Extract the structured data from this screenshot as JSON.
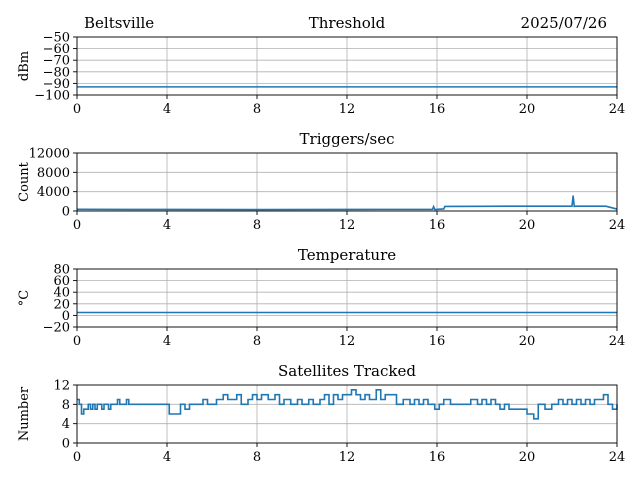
{
  "header": {
    "location": "Beltsville",
    "date": "2025/07/26"
  },
  "colors": {
    "line": "#1f77b4",
    "grid": "#b0b0b0",
    "axis": "#000000"
  },
  "chart_data": [
    {
      "type": "line",
      "title": "Threshold",
      "xlabel": "",
      "ylabel": "dBm",
      "xlim": [
        0,
        24
      ],
      "ylim": [
        -100,
        -50
      ],
      "xticks": [
        0,
        4,
        8,
        12,
        16,
        20,
        24
      ],
      "yticks": [
        -100,
        -90,
        -80,
        -70,
        -60,
        -50
      ],
      "ytick_labels": [
        "−100",
        "−90",
        "−80",
        "−70",
        "−60",
        "−50"
      ],
      "grid": true,
      "series": [
        {
          "x": [
            0,
            24
          ],
          "y": [
            -93,
            -93
          ]
        }
      ]
    },
    {
      "type": "line",
      "title": "Triggers/sec",
      "xlabel": "",
      "ylabel": "Count",
      "xlim": [
        0,
        24
      ],
      "ylim": [
        0,
        12000
      ],
      "xticks": [
        0,
        4,
        8,
        12,
        16,
        20,
        24
      ],
      "yticks": [
        0,
        4000,
        8000,
        12000
      ],
      "ytick_labels": [
        "0",
        "4000",
        "8000",
        "12000"
      ],
      "grid": true,
      "series": [
        {
          "x": [
            0,
            4,
            8,
            12,
            15.8,
            15.85,
            15.9,
            16.1,
            16.3,
            16.35,
            18,
            20,
            22,
            22.05,
            22.1,
            22.15,
            23.5,
            24
          ],
          "y": [
            350,
            320,
            300,
            330,
            350,
            900,
            300,
            380,
            420,
            950,
            980,
            1000,
            1000,
            3200,
            950,
            1000,
            1000,
            400
          ]
        }
      ]
    },
    {
      "type": "line",
      "title": "Temperature",
      "xlabel": "",
      "ylabel": "°C",
      "xlim": [
        0,
        24
      ],
      "ylim": [
        -20,
        80
      ],
      "xticks": [
        0,
        4,
        8,
        12,
        16,
        20,
        24
      ],
      "yticks": [
        -20,
        0,
        20,
        40,
        60,
        80
      ],
      "ytick_labels": [
        "−20",
        "0",
        "20",
        "40",
        "60",
        "80"
      ],
      "grid": true,
      "series": [
        {
          "x": [
            0,
            24
          ],
          "y": [
            5,
            5
          ]
        }
      ]
    },
    {
      "type": "line",
      "title": "Satellites Tracked",
      "xlabel": "",
      "ylabel": "Number",
      "xlim": [
        0,
        24
      ],
      "ylim": [
        0,
        12
      ],
      "xticks": [
        0,
        4,
        8,
        12,
        16,
        20,
        24
      ],
      "yticks": [
        0,
        4,
        8,
        12
      ],
      "ytick_labels": [
        "0",
        "4",
        "8",
        "12"
      ],
      "grid": true,
      "step": true,
      "series": [
        {
          "x": [
            0,
            0.1,
            0.2,
            0.3,
            0.4,
            0.5,
            0.6,
            0.7,
            0.8,
            0.9,
            1.0,
            1.1,
            1.2,
            1.3,
            1.4,
            1.5,
            1.6,
            1.7,
            1.8,
            1.9,
            2.0,
            2.1,
            2.2,
            2.3,
            2.5,
            3.0,
            3.5,
            3.9,
            4.1,
            4.6,
            4.8,
            5.0,
            5.2,
            5.4,
            5.6,
            5.8,
            6.0,
            6.2,
            6.3,
            6.5,
            6.7,
            6.9,
            7.1,
            7.3,
            7.6,
            7.8,
            8.0,
            8.2,
            8.5,
            8.8,
            9.0,
            9.2,
            9.5,
            9.8,
            10.0,
            10.3,
            10.5,
            10.8,
            11.0,
            11.2,
            11.4,
            11.6,
            11.8,
            12.0,
            12.2,
            12.4,
            12.6,
            12.8,
            13.0,
            13.3,
            13.5,
            13.7,
            14.0,
            14.2,
            14.5,
            14.8,
            15.0,
            15.2,
            15.4,
            15.6,
            15.9,
            16.1,
            16.3,
            16.6,
            16.9,
            17.2,
            17.5,
            17.8,
            18.0,
            18.2,
            18.4,
            18.6,
            18.8,
            19.0,
            19.2,
            19.5,
            19.8,
            20.0,
            20.1,
            20.3,
            20.5,
            20.8,
            21.1,
            21.4,
            21.6,
            21.8,
            22.0,
            22.2,
            22.4,
            22.6,
            22.8,
            23.0,
            23.2,
            23.4,
            23.6,
            23.8,
            24.0
          ],
          "y": [
            9,
            8,
            6,
            7,
            7,
            8,
            7,
            8,
            7,
            8,
            8,
            7,
            8,
            8,
            7,
            8,
            8,
            8,
            9,
            8,
            8,
            8,
            9,
            8,
            8,
            8,
            8,
            8,
            6,
            8,
            7,
            8,
            8,
            8,
            9,
            8,
            8,
            9,
            9,
            10,
            9,
            9,
            10,
            8,
            9,
            10,
            9,
            10,
            9,
            10,
            8,
            9,
            8,
            9,
            8,
            9,
            8,
            9,
            10,
            8,
            10,
            9,
            10,
            10,
            11,
            10,
            9,
            10,
            9,
            11,
            9,
            10,
            10,
            8,
            9,
            8,
            9,
            8,
            9,
            8,
            7,
            8,
            9,
            8,
            8,
            8,
            9,
            8,
            9,
            8,
            9,
            8,
            7,
            8,
            7,
            7,
            7,
            6,
            6,
            5,
            8,
            7,
            8,
            9,
            8,
            9,
            8,
            9,
            8,
            9,
            8,
            9,
            9,
            10,
            8,
            7,
            8
          ]
        }
      ]
    }
  ]
}
